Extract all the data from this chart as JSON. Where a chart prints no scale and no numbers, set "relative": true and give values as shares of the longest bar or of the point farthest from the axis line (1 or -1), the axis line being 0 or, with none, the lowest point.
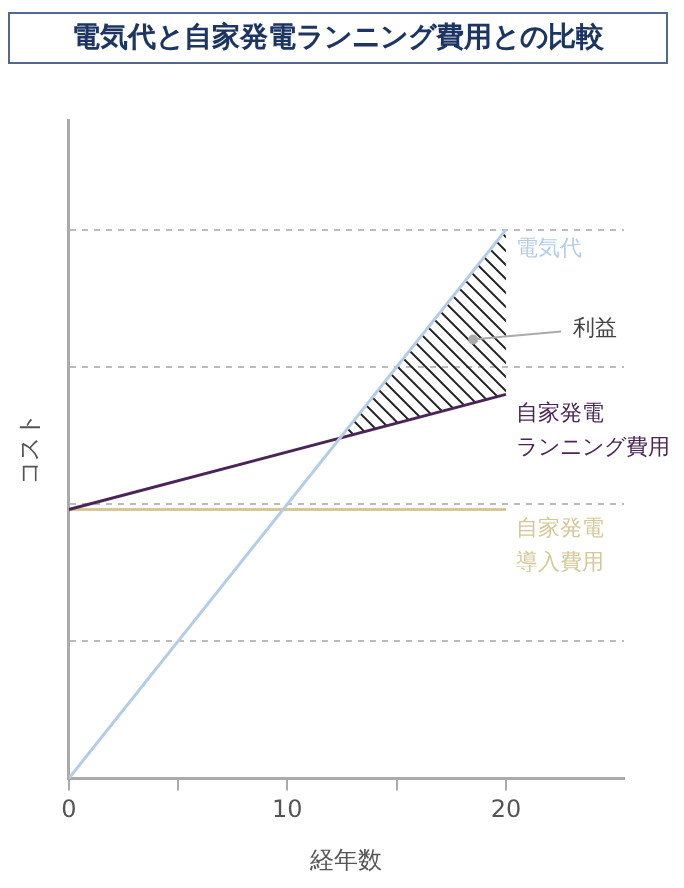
{
  "chart_data": {
    "type": "line",
    "title": "電気代と自家発電ランニング費用との比較",
    "xlabel": "経年数",
    "ylabel": "コスト",
    "relative": true,
    "xlim": [
      0,
      25.4
    ],
    "xticks": [
      0,
      {
        "value": 5,
        "label": null
      },
      10,
      {
        "value": 15,
        "label": null
      },
      20
    ],
    "x": [
      0,
      20
    ],
    "grid": "y",
    "legend": false,
    "marker": "none",
    "line_style": "solid",
    "series": [
      {
        "name": "電気代",
        "color": "#b4cde6",
        "values": [
          0,
          1
        ]
      },
      {
        "name": "自家発電ランニング費用",
        "color": "#4b2556",
        "values": [
          0.49,
          0.7
        ]
      },
      {
        "name": "自家発電導入費用",
        "color": "#d6c896",
        "values": [
          0.49,
          0.49
        ]
      }
    ],
    "annotations": [
      {
        "text": "利益",
        "x": 18.5,
        "y": 0.8
      }
    ]
  }
}
